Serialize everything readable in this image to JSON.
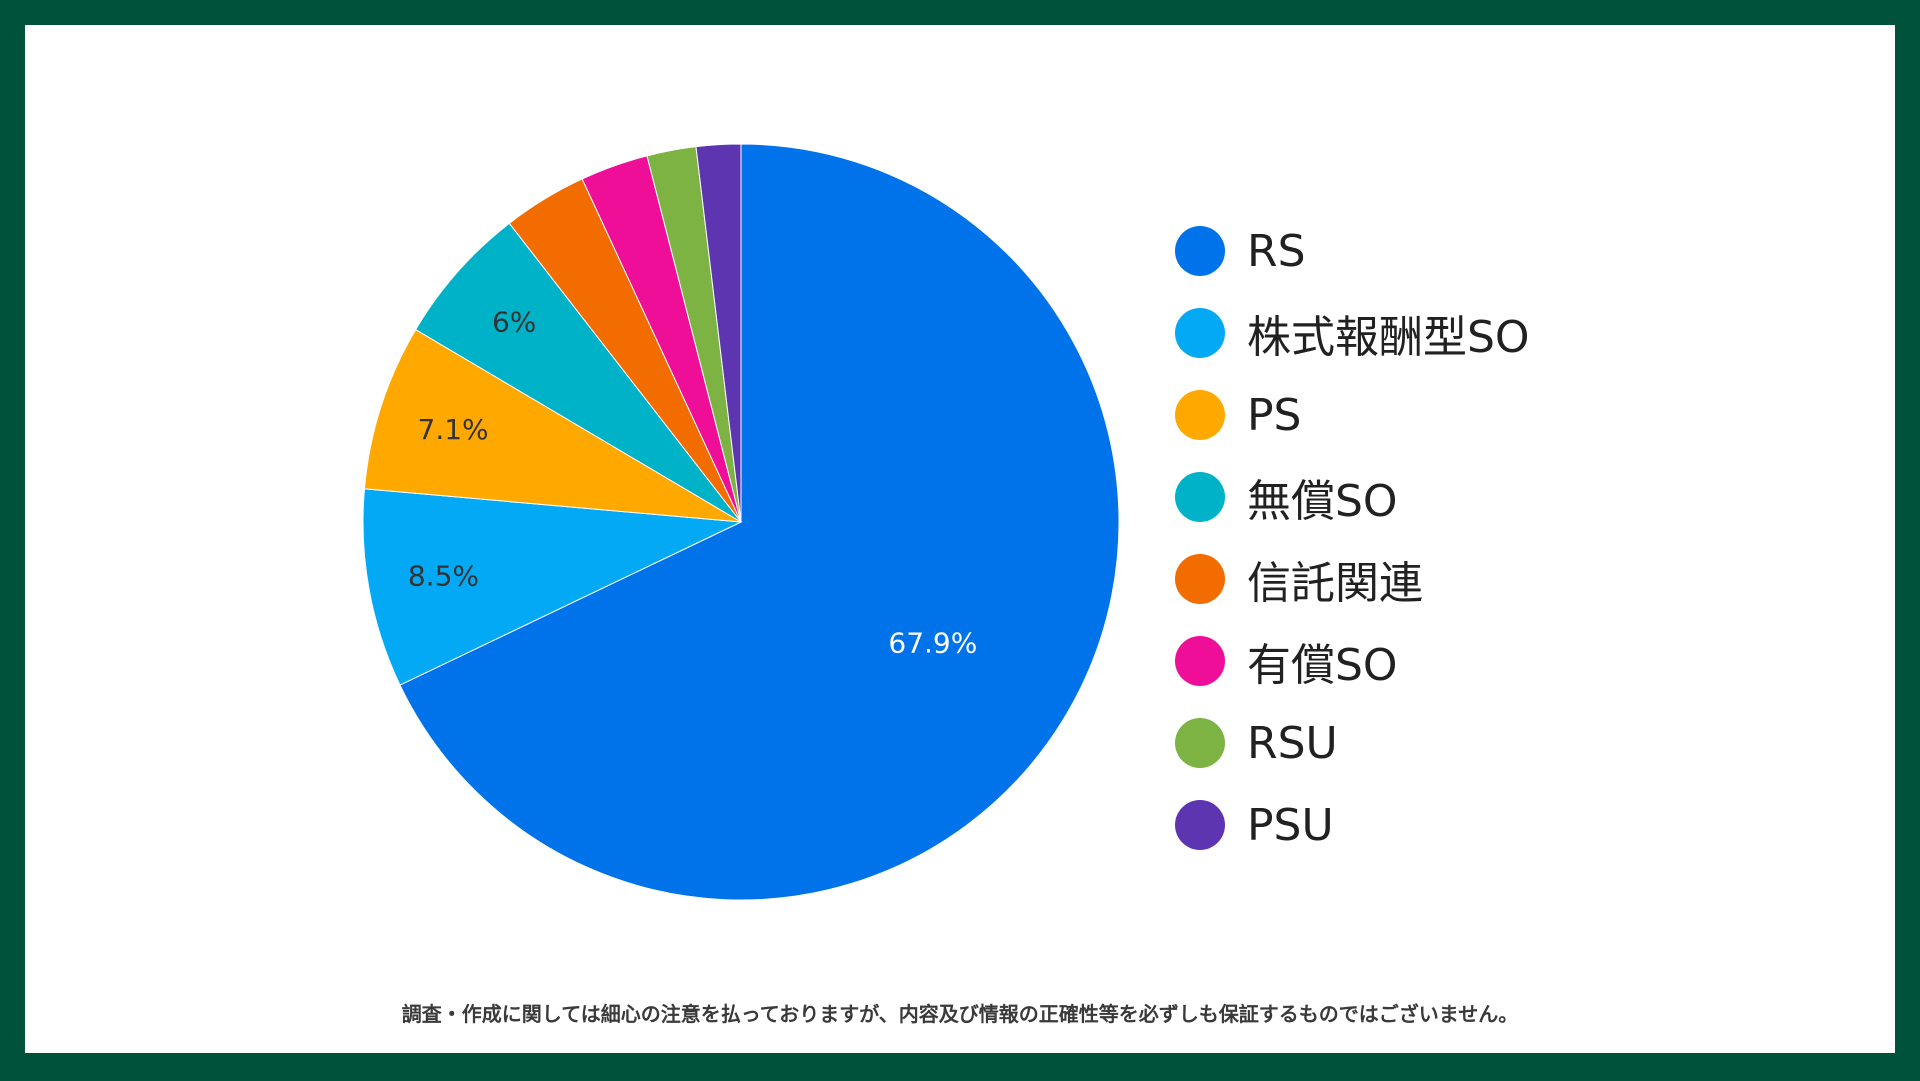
{
  "chart_data": {
    "type": "pie",
    "slices": [
      {
        "name": "RS",
        "value": 67.9,
        "label": "67.9%",
        "color": "#0073ea"
      },
      {
        "name": "株式報酬型SO",
        "value": 8.5,
        "label": "8.5%",
        "color": "#03a9f4"
      },
      {
        "name": "PS",
        "value": 7.1,
        "label": "7.1%",
        "color": "#ffa800"
      },
      {
        "name": "無償SO",
        "value": 6.0,
        "label": "6%",
        "color": "#00b2c8"
      },
      {
        "name": "信託関連",
        "value": 3.6,
        "label": "",
        "color": "#f26c00"
      },
      {
        "name": "有償SO",
        "value": 2.9,
        "label": "",
        "color": "#ee0e97"
      },
      {
        "name": "RSU",
        "value": 2.1,
        "label": "",
        "color": "#7cb342"
      },
      {
        "name": "PSU",
        "value": 1.9,
        "label": "",
        "color": "#5e35b1"
      }
    ],
    "start_angle_deg": 0,
    "direction": "clockwise",
    "legend_position": "right"
  },
  "disclaimer": "調査・作成に関しては細心の注意を払っておりますが、内容及び情報の正確性等を必ずしも保証するものではございません。"
}
